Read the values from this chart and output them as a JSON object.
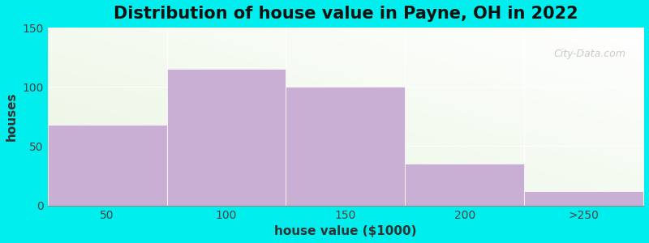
{
  "title": "Distribution of house value in Payne, OH in 2022",
  "xlabel": "house value ($1000)",
  "ylabel": "houses",
  "categories": [
    "50",
    "100",
    "150",
    "200",
    ">250"
  ],
  "values": [
    68,
    115,
    100,
    35,
    12
  ],
  "bar_color": "#c9afd4",
  "ylim": [
    0,
    150
  ],
  "yticks": [
    0,
    50,
    100,
    150
  ],
  "background_outer": "#00eeee",
  "title_fontsize": 15,
  "axis_label_fontsize": 11,
  "tick_fontsize": 10,
  "watermark": "City-Data.com",
  "bar_edges": [
    0,
    1,
    2,
    3,
    4,
    5
  ]
}
